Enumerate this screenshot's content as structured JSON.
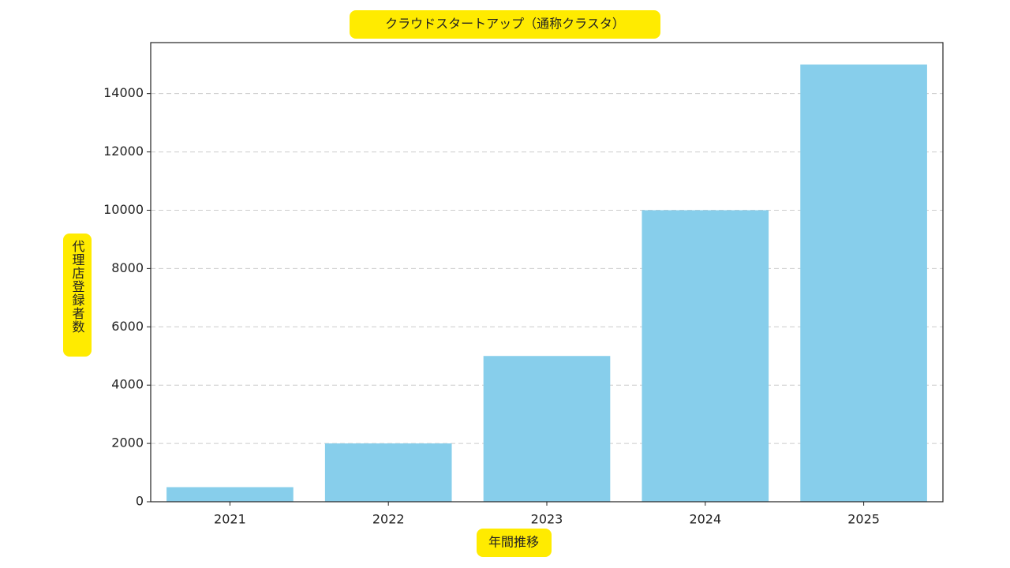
{
  "chart_data": {
    "type": "bar",
    "title": "クラウドスタートアップ（通称クラスタ）",
    "x_label": "年間推移",
    "y_label": "代理店登録者数",
    "categories": [
      "2021",
      "2022",
      "2023",
      "2024",
      "2025"
    ],
    "values": [
      500,
      2000,
      5000,
      10000,
      15000
    ],
    "color": "#87ceeb",
    "ylim": [
      0,
      15750
    ],
    "yticks": [
      0,
      2000,
      4000,
      6000,
      8000,
      10000,
      12000,
      14000
    ],
    "grid": true
  }
}
